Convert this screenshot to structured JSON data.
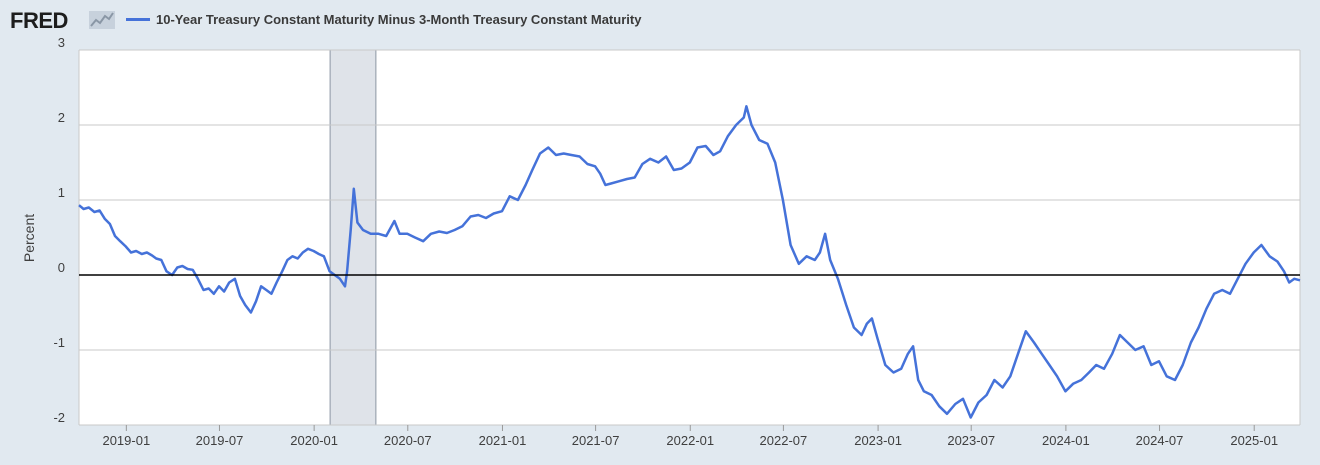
{
  "header": {
    "logo_text": "FRED",
    "logo_icon": "sparkline-icon",
    "series_title": "10-Year Treasury Constant Maturity Minus 3-Month Treasury Constant Maturity"
  },
  "colors": {
    "background": "#e1e9f0",
    "plot_background": "#ffffff",
    "series": "#4572d9",
    "recession": "#dfe3e9",
    "zero_line": "#000000",
    "grid": "#c9c9c9"
  },
  "chart_data": {
    "type": "line",
    "title": "10-Year Treasury Constant Maturity Minus 3-Month Treasury Constant Maturity",
    "xlabel": "",
    "ylabel": "Percent",
    "ylim": [
      -2,
      3
    ],
    "xlim": [
      "2018-10-01",
      "2025-03-31"
    ],
    "yticks": [
      "3",
      "2",
      "1",
      "0",
      "-1",
      "-2"
    ],
    "xticks": [
      "2019-01",
      "2019-07",
      "2020-01",
      "2020-07",
      "2021-01",
      "2021-07",
      "2022-01",
      "2022-07",
      "2023-01",
      "2023-07",
      "2024-01",
      "2024-07",
      "2025-01"
    ],
    "grid": true,
    "legend": "top-left",
    "recessions": [
      {
        "start": "2020-02-01",
        "end": "2020-04-30"
      }
    ],
    "reference_line": 0,
    "series": [
      {
        "name": "10-Year Treasury Constant Maturity Minus 3-Month Treasury Constant Maturity",
        "points": [
          [
            "2018-10-01",
            0.93
          ],
          [
            "2018-10-10",
            0.88
          ],
          [
            "2018-10-20",
            0.9
          ],
          [
            "2018-10-31",
            0.84
          ],
          [
            "2018-11-10",
            0.86
          ],
          [
            "2018-11-20",
            0.75
          ],
          [
            "2018-11-30",
            0.68
          ],
          [
            "2018-12-10",
            0.52
          ],
          [
            "2018-12-20",
            0.45
          ],
          [
            "2018-12-31",
            0.38
          ],
          [
            "2019-01-10",
            0.3
          ],
          [
            "2019-01-20",
            0.32
          ],
          [
            "2019-01-31",
            0.28
          ],
          [
            "2019-02-10",
            0.3
          ],
          [
            "2019-02-20",
            0.26
          ],
          [
            "2019-02-28",
            0.22
          ],
          [
            "2019-03-10",
            0.2
          ],
          [
            "2019-03-20",
            0.05
          ],
          [
            "2019-03-31",
            0.0
          ],
          [
            "2019-04-10",
            0.1
          ],
          [
            "2019-04-20",
            0.12
          ],
          [
            "2019-04-30",
            0.08
          ],
          [
            "2019-05-10",
            0.07
          ],
          [
            "2019-05-20",
            -0.05
          ],
          [
            "2019-05-31",
            -0.2
          ],
          [
            "2019-06-10",
            -0.18
          ],
          [
            "2019-06-20",
            -0.25
          ],
          [
            "2019-06-30",
            -0.15
          ],
          [
            "2019-07-10",
            -0.22
          ],
          [
            "2019-07-20",
            -0.1
          ],
          [
            "2019-07-31",
            -0.05
          ],
          [
            "2019-08-10",
            -0.28
          ],
          [
            "2019-08-20",
            -0.4
          ],
          [
            "2019-08-31",
            -0.5
          ],
          [
            "2019-09-10",
            -0.35
          ],
          [
            "2019-09-20",
            -0.15
          ],
          [
            "2019-09-30",
            -0.2
          ],
          [
            "2019-10-10",
            -0.25
          ],
          [
            "2019-10-20",
            -0.1
          ],
          [
            "2019-10-31",
            0.05
          ],
          [
            "2019-11-10",
            0.2
          ],
          [
            "2019-11-20",
            0.25
          ],
          [
            "2019-11-30",
            0.22
          ],
          [
            "2019-12-10",
            0.3
          ],
          [
            "2019-12-20",
            0.35
          ],
          [
            "2019-12-31",
            0.32
          ],
          [
            "2020-01-10",
            0.28
          ],
          [
            "2020-01-20",
            0.25
          ],
          [
            "2020-01-31",
            0.05
          ],
          [
            "2020-02-10",
            0.0
          ],
          [
            "2020-02-20",
            -0.05
          ],
          [
            "2020-03-01",
            -0.15
          ],
          [
            "2020-03-05",
            0.05
          ],
          [
            "2020-03-12",
            0.6
          ],
          [
            "2020-03-18",
            1.15
          ],
          [
            "2020-03-25",
            0.7
          ],
          [
            "2020-04-05",
            0.6
          ],
          [
            "2020-04-20",
            0.55
          ],
          [
            "2020-05-05",
            0.55
          ],
          [
            "2020-05-20",
            0.52
          ],
          [
            "2020-06-05",
            0.72
          ],
          [
            "2020-06-15",
            0.55
          ],
          [
            "2020-06-30",
            0.55
          ],
          [
            "2020-07-15",
            0.5
          ],
          [
            "2020-07-31",
            0.45
          ],
          [
            "2020-08-15",
            0.55
          ],
          [
            "2020-08-31",
            0.58
          ],
          [
            "2020-09-15",
            0.56
          ],
          [
            "2020-09-30",
            0.6
          ],
          [
            "2020-10-15",
            0.65
          ],
          [
            "2020-10-31",
            0.78
          ],
          [
            "2020-11-15",
            0.8
          ],
          [
            "2020-11-30",
            0.76
          ],
          [
            "2020-12-15",
            0.82
          ],
          [
            "2020-12-31",
            0.85
          ],
          [
            "2021-01-15",
            1.05
          ],
          [
            "2021-01-31",
            1.0
          ],
          [
            "2021-02-15",
            1.2
          ],
          [
            "2021-02-28",
            1.4
          ],
          [
            "2021-03-15",
            1.62
          ],
          [
            "2021-03-31",
            1.7
          ],
          [
            "2021-04-15",
            1.6
          ],
          [
            "2021-04-30",
            1.62
          ],
          [
            "2021-05-15",
            1.6
          ],
          [
            "2021-05-31",
            1.58
          ],
          [
            "2021-06-15",
            1.48
          ],
          [
            "2021-06-30",
            1.45
          ],
          [
            "2021-07-10",
            1.35
          ],
          [
            "2021-07-20",
            1.2
          ],
          [
            "2021-07-31",
            1.22
          ],
          [
            "2021-08-15",
            1.25
          ],
          [
            "2021-08-31",
            1.28
          ],
          [
            "2021-09-15",
            1.3
          ],
          [
            "2021-09-30",
            1.48
          ],
          [
            "2021-10-15",
            1.55
          ],
          [
            "2021-10-31",
            1.5
          ],
          [
            "2021-11-15",
            1.58
          ],
          [
            "2021-11-30",
            1.4
          ],
          [
            "2021-12-15",
            1.42
          ],
          [
            "2021-12-31",
            1.5
          ],
          [
            "2022-01-15",
            1.7
          ],
          [
            "2022-01-31",
            1.72
          ],
          [
            "2022-02-15",
            1.6
          ],
          [
            "2022-02-28",
            1.65
          ],
          [
            "2022-03-15",
            1.85
          ],
          [
            "2022-03-31",
            2.0
          ],
          [
            "2022-04-15",
            2.1
          ],
          [
            "2022-04-20",
            2.25
          ],
          [
            "2022-04-30",
            2.0
          ],
          [
            "2022-05-15",
            1.8
          ],
          [
            "2022-05-31",
            1.75
          ],
          [
            "2022-06-15",
            1.5
          ],
          [
            "2022-06-30",
            1.0
          ],
          [
            "2022-07-15",
            0.4
          ],
          [
            "2022-07-31",
            0.15
          ],
          [
            "2022-08-15",
            0.25
          ],
          [
            "2022-08-31",
            0.2
          ],
          [
            "2022-09-10",
            0.3
          ],
          [
            "2022-09-20",
            0.55
          ],
          [
            "2022-09-30",
            0.2
          ],
          [
            "2022-10-15",
            -0.05
          ],
          [
            "2022-10-31",
            -0.4
          ],
          [
            "2022-11-15",
            -0.7
          ],
          [
            "2022-11-30",
            -0.8
          ],
          [
            "2022-12-10",
            -0.65
          ],
          [
            "2022-12-20",
            -0.58
          ],
          [
            "2022-12-31",
            -0.85
          ],
          [
            "2023-01-15",
            -1.2
          ],
          [
            "2023-01-31",
            -1.3
          ],
          [
            "2023-02-15",
            -1.25
          ],
          [
            "2023-02-28",
            -1.05
          ],
          [
            "2023-03-10",
            -0.95
          ],
          [
            "2023-03-20",
            -1.4
          ],
          [
            "2023-03-31",
            -1.55
          ],
          [
            "2023-04-15",
            -1.6
          ],
          [
            "2023-04-30",
            -1.75
          ],
          [
            "2023-05-15",
            -1.85
          ],
          [
            "2023-05-31",
            -1.72
          ],
          [
            "2023-06-15",
            -1.65
          ],
          [
            "2023-06-30",
            -1.9
          ],
          [
            "2023-07-15",
            -1.7
          ],
          [
            "2023-07-31",
            -1.6
          ],
          [
            "2023-08-15",
            -1.4
          ],
          [
            "2023-08-31",
            -1.5
          ],
          [
            "2023-09-15",
            -1.35
          ],
          [
            "2023-09-30",
            -1.05
          ],
          [
            "2023-10-15",
            -0.75
          ],
          [
            "2023-10-31",
            -0.9
          ],
          [
            "2023-11-15",
            -1.05
          ],
          [
            "2023-11-30",
            -1.2
          ],
          [
            "2023-12-15",
            -1.35
          ],
          [
            "2023-12-31",
            -1.55
          ],
          [
            "2024-01-15",
            -1.45
          ],
          [
            "2024-01-31",
            -1.4
          ],
          [
            "2024-02-15",
            -1.3
          ],
          [
            "2024-02-29",
            -1.2
          ],
          [
            "2024-03-15",
            -1.25
          ],
          [
            "2024-03-31",
            -1.05
          ],
          [
            "2024-04-15",
            -0.8
          ],
          [
            "2024-04-30",
            -0.9
          ],
          [
            "2024-05-15",
            -1.0
          ],
          [
            "2024-05-31",
            -0.95
          ],
          [
            "2024-06-15",
            -1.2
          ],
          [
            "2024-06-30",
            -1.15
          ],
          [
            "2024-07-15",
            -1.35
          ],
          [
            "2024-07-31",
            -1.4
          ],
          [
            "2024-08-15",
            -1.2
          ],
          [
            "2024-08-31",
            -0.9
          ],
          [
            "2024-09-15",
            -0.7
          ],
          [
            "2024-09-30",
            -0.45
          ],
          [
            "2024-10-15",
            -0.25
          ],
          [
            "2024-10-31",
            -0.2
          ],
          [
            "2024-11-15",
            -0.25
          ],
          [
            "2024-11-30",
            -0.05
          ],
          [
            "2024-12-15",
            0.15
          ],
          [
            "2024-12-31",
            0.3
          ],
          [
            "2025-01-15",
            0.4
          ],
          [
            "2025-01-31",
            0.25
          ],
          [
            "2025-02-15",
            0.18
          ],
          [
            "2025-02-28",
            0.05
          ],
          [
            "2025-03-10",
            -0.1
          ],
          [
            "2025-03-20",
            -0.05
          ],
          [
            "2025-03-31",
            -0.07
          ]
        ]
      }
    ]
  }
}
